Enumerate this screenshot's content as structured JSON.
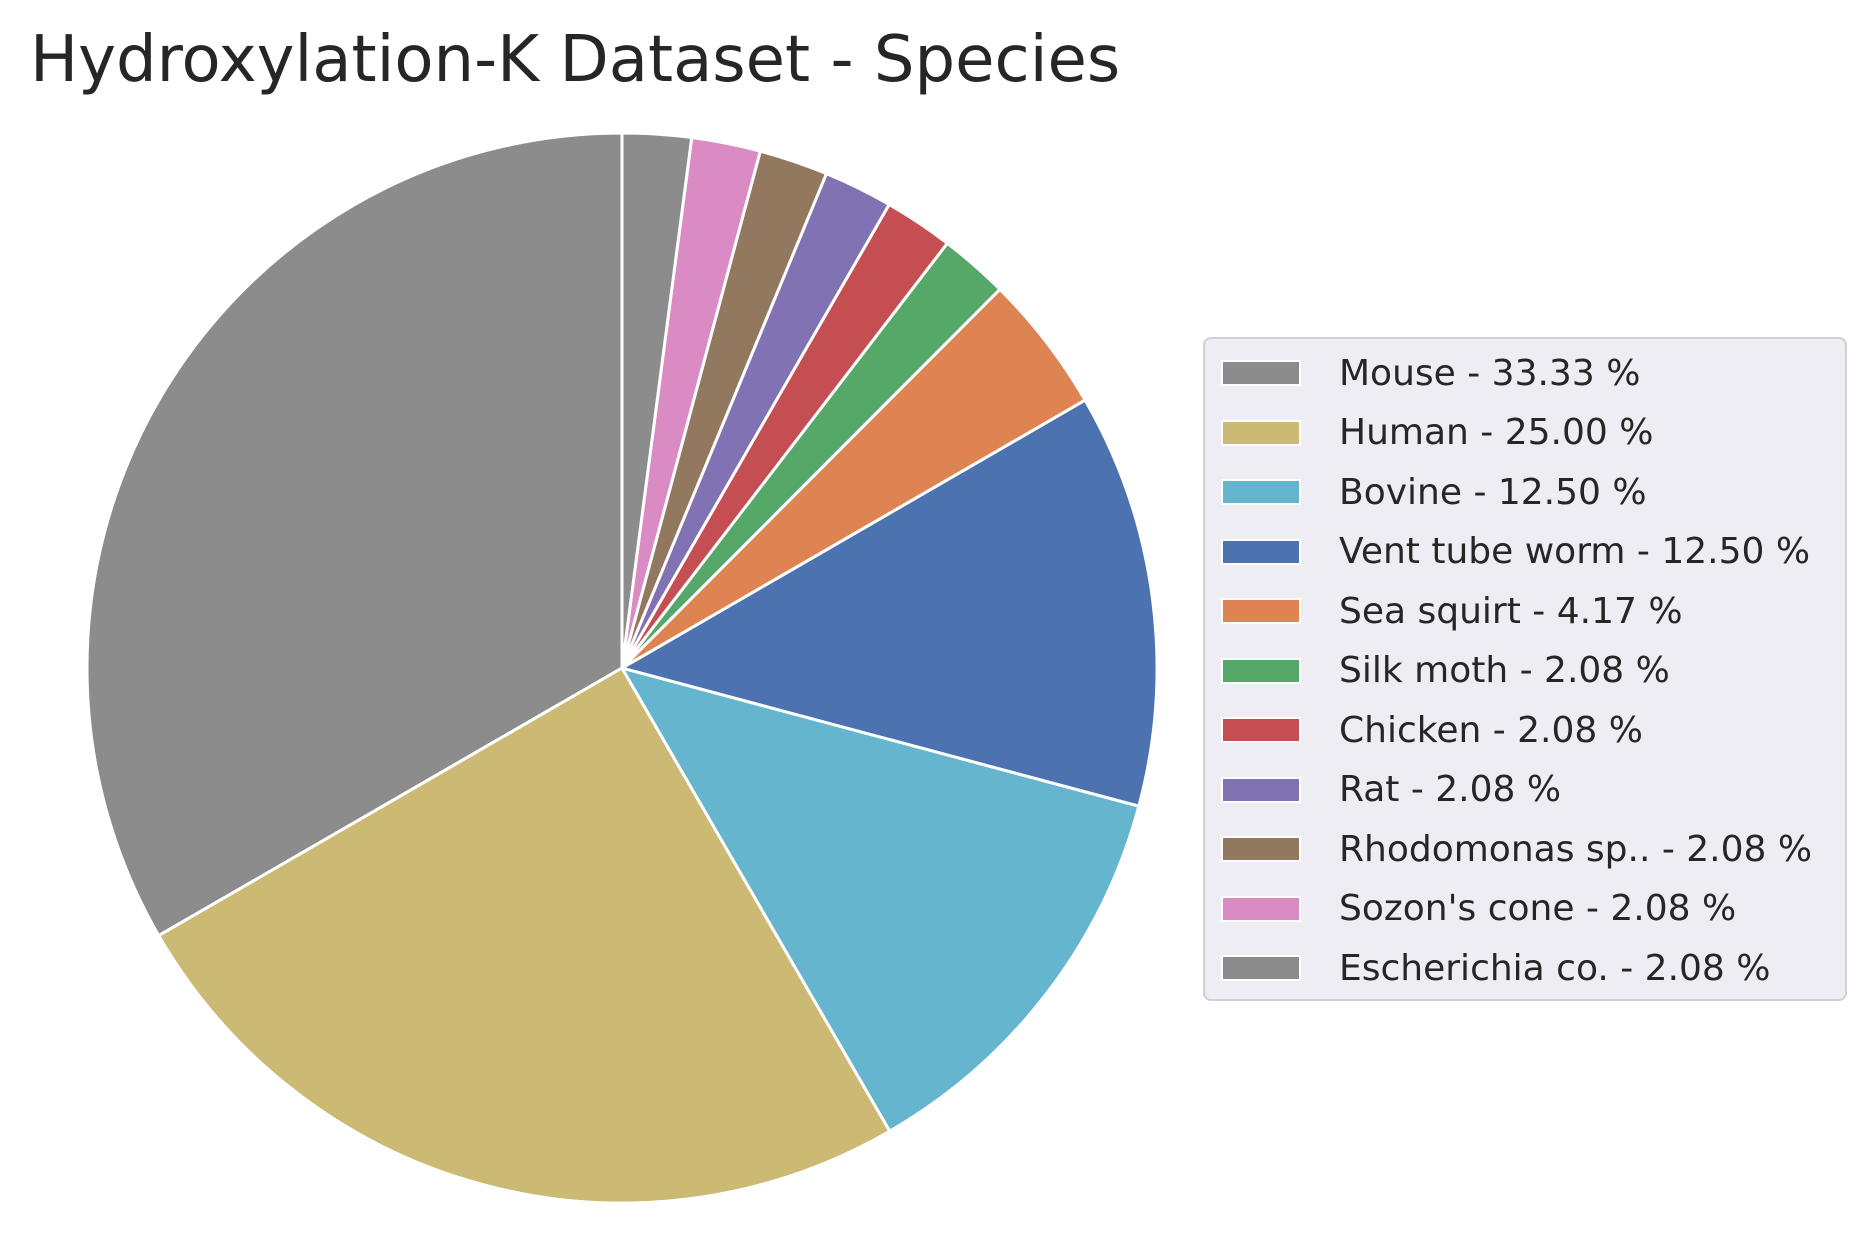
{
  "chart_data": {
    "type": "pie",
    "title": "Hydroxylation-K Dataset - Species",
    "slices": [
      {
        "label": "Mouse",
        "value": 33.33,
        "legend": "Mouse - 33.33 %",
        "color": "#8c8c8c"
      },
      {
        "label": "Human",
        "value": 25.0,
        "legend": "Human - 25.00 %",
        "color": "#ccb974"
      },
      {
        "label": "Bovine",
        "value": 12.5,
        "legend": "Bovine - 12.50 %",
        "color": "#64b5cd"
      },
      {
        "label": "Vent tube worm",
        "value": 12.5,
        "legend": "Vent tube worm - 12.50 %",
        "color": "#4c72b0"
      },
      {
        "label": "Sea squirt",
        "value": 4.17,
        "legend": "Sea squirt - 4.17 %",
        "color": "#dd8452"
      },
      {
        "label": "Silk moth",
        "value": 2.08,
        "legend": "Silk moth - 2.08 %",
        "color": "#55a868"
      },
      {
        "label": "Chicken",
        "value": 2.08,
        "legend": "Chicken - 2.08 %",
        "color": "#c44e52"
      },
      {
        "label": "Rat",
        "value": 2.08,
        "legend": "Rat - 2.08 %",
        "color": "#8172b3"
      },
      {
        "label": "Rhodomonas sp..",
        "value": 2.08,
        "legend": "Rhodomonas sp.. - 2.08 %",
        "color": "#937860"
      },
      {
        "label": "Sozon's cone",
        "value": 2.08,
        "legend": "Sozon's cone - 2.08 %",
        "color": "#da8bc3"
      },
      {
        "label": "Escherichia co.",
        "value": 2.08,
        "legend": "Escherichia co. - 2.08 %",
        "color": "#8c8c8c"
      }
    ],
    "start_angle_deg": 90,
    "direction": "counterclockwise",
    "legend_placement": "right",
    "wedge_edge_color": "#ffffff",
    "legend_background": "#eeedf3"
  }
}
